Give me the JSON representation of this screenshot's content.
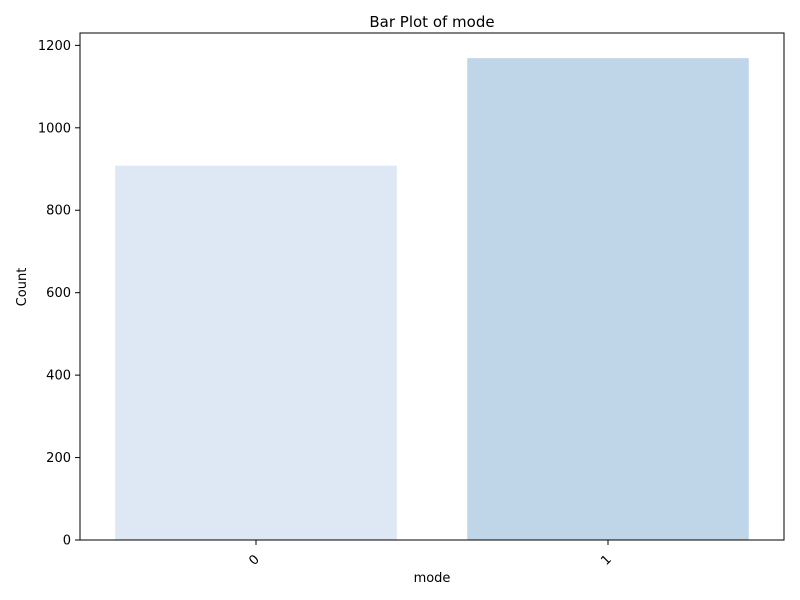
{
  "chart_data": {
    "type": "bar",
    "title": "Bar Plot of mode",
    "xlabel": "mode",
    "ylabel": "Count",
    "categories": [
      "0",
      "1"
    ],
    "values": [
      908,
      1169
    ],
    "ylim": [
      0,
      1230
    ],
    "yticks": [
      0,
      200,
      400,
      600,
      800,
      1000,
      1200
    ],
    "ytick_labels": [
      "0",
      "200",
      "400",
      "600",
      "800",
      "1000",
      "1200"
    ],
    "bar_colors": [
      "#dee8f4",
      "#bfd5e8"
    ],
    "grid": false,
    "legend": "none"
  }
}
